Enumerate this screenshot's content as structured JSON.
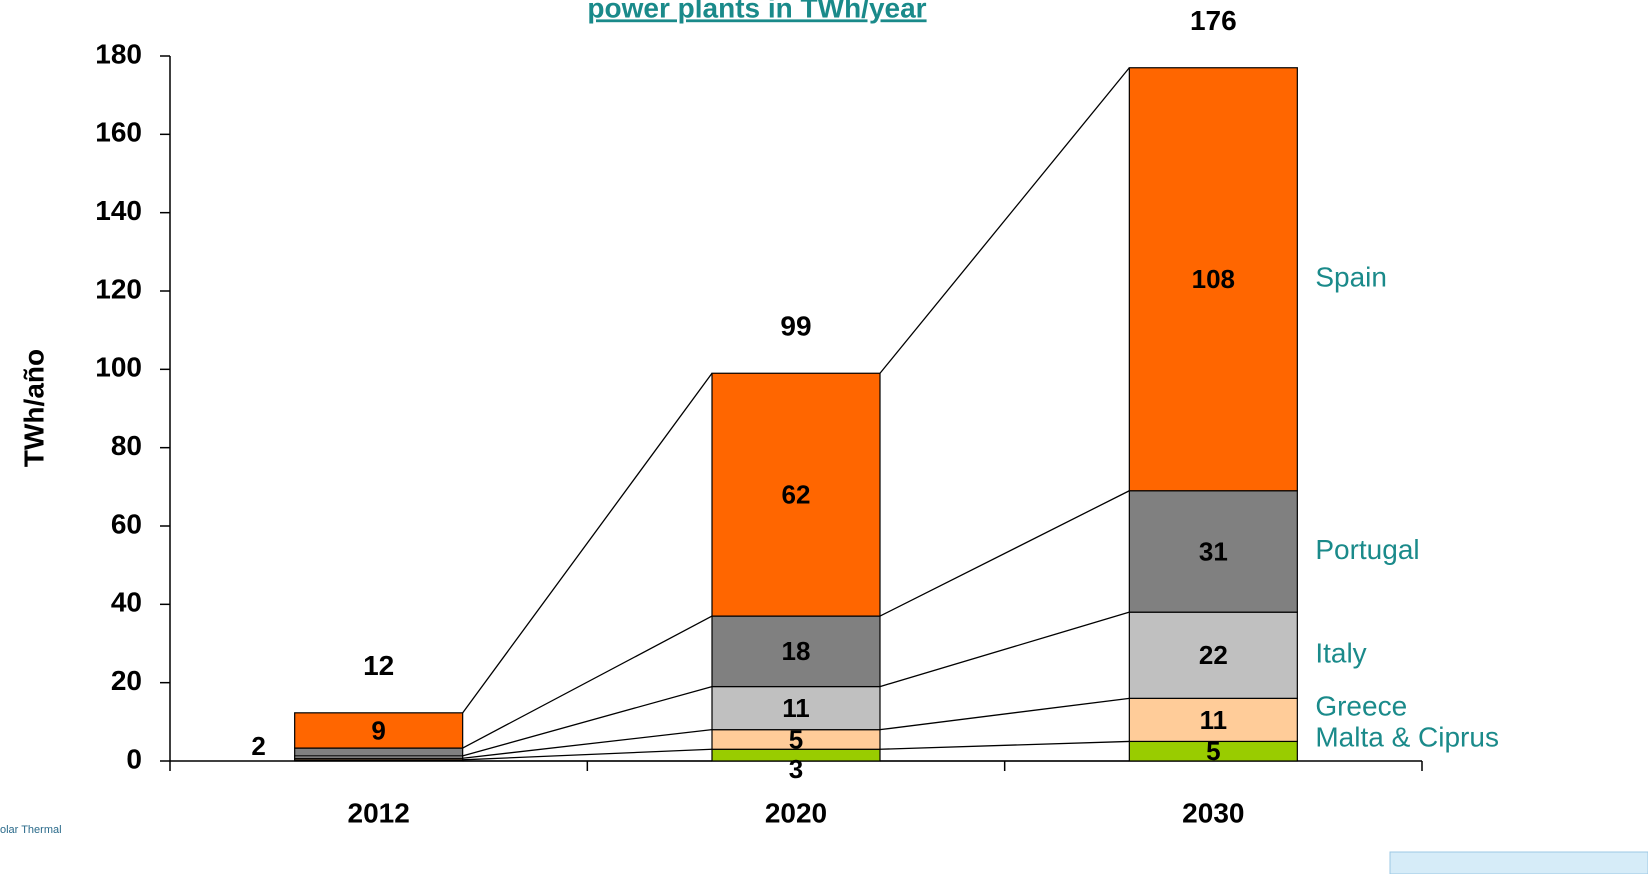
{
  "chart_data": {
    "type": "stacked_bar",
    "title": "power plants in TWh/year",
    "y_label": "TWh/año",
    "categories": [
      "2012",
      "2020",
      "2030"
    ],
    "series": [
      {
        "name": "Malta & Ciprus",
        "color": "#99cc00",
        "values": [
          0.3,
          3,
          5
        ],
        "value_labels": [
          null,
          "3",
          "5"
        ]
      },
      {
        "name": "Greece",
        "color": "#ffcc99",
        "values": [
          0.4,
          5,
          11
        ],
        "value_labels": [
          null,
          "5",
          "11"
        ]
      },
      {
        "name": "Italy",
        "color": "#c0c0c0",
        "values": [
          0.6,
          11,
          22
        ],
        "value_labels": [
          null,
          "11",
          "22"
        ]
      },
      {
        "name": "Portugal",
        "color": "#808080",
        "values": [
          2,
          18,
          31
        ],
        "value_labels": [
          "2",
          "18",
          "31"
        ]
      },
      {
        "name": "Spain",
        "color": "#ff6600",
        "values": [
          9,
          62,
          108
        ],
        "value_labels": [
          "9",
          "62",
          "108"
        ]
      }
    ],
    "totals": [
      12,
      99,
      176
    ],
    "ylim": [
      0,
      180
    ],
    "yticks": [
      0,
      20,
      40,
      60,
      80,
      100,
      120,
      140,
      160,
      180
    ],
    "connectors": true,
    "legend": "right"
  },
  "logo_text": "olar Thermal"
}
